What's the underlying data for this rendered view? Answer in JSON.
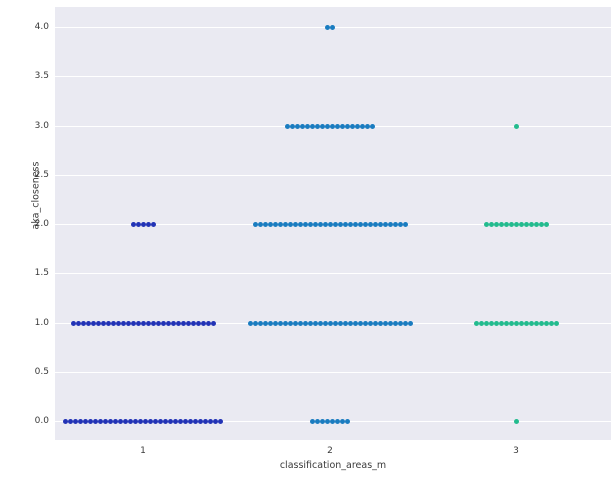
{
  "chart_data": {
    "type": "scatter",
    "subtype": "swarm",
    "title": "",
    "xlabel": "classification_areas_m",
    "ylabel": "aka_closeness",
    "x_ticks": [
      "1",
      "2",
      "3"
    ],
    "y_ticks": [
      "0.0",
      "0.5",
      "1.0",
      "1.5",
      "2.0",
      "2.5",
      "3.0",
      "3.5",
      "4.0"
    ],
    "ylim": [
      -0.2,
      4.2
    ],
    "grid": "horizontal-only",
    "legend": "none",
    "plot_bg": "#eaeaf2",
    "grid_color": "#ffffff",
    "series": [
      {
        "name": "1",
        "color": "#2233b6",
        "rows": [
          {
            "y": 0.0,
            "count": 32
          },
          {
            "y": 1.0,
            "count": 29
          },
          {
            "y": 2.0,
            "count": 5
          }
        ]
      },
      {
        "name": "2",
        "color": "#1a7cc0",
        "rows": [
          {
            "y": 0.0,
            "count": 8
          },
          {
            "y": 1.0,
            "count": 33
          },
          {
            "y": 2.0,
            "count": 31
          },
          {
            "y": 3.0,
            "count": 18
          },
          {
            "y": 4.0,
            "count": 2
          }
        ]
      },
      {
        "name": "3",
        "color": "#23bb8e",
        "rows": [
          {
            "y": 0.0,
            "count": 1
          },
          {
            "y": 1.0,
            "count": 17
          },
          {
            "y": 2.0,
            "count": 13
          },
          {
            "y": 3.0,
            "count": 1
          }
        ]
      }
    ]
  }
}
